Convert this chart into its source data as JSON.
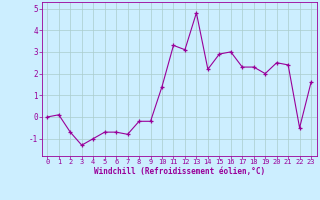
{
  "x": [
    0,
    1,
    2,
    3,
    4,
    5,
    6,
    7,
    8,
    9,
    10,
    11,
    12,
    13,
    14,
    15,
    16,
    17,
    18,
    19,
    20,
    21,
    22,
    23
  ],
  "y": [
    0.0,
    0.1,
    -0.7,
    -1.3,
    -1.0,
    -0.7,
    -0.7,
    -0.8,
    -0.2,
    -0.2,
    1.4,
    3.3,
    3.1,
    4.8,
    2.2,
    2.9,
    3.0,
    2.3,
    2.3,
    2.0,
    2.5,
    2.4,
    -0.5,
    1.6
  ],
  "line_color": "#990099",
  "marker": "+",
  "marker_color": "#990099",
  "bg_color": "#cceeff",
  "grid_color": "#aacccc",
  "xlabel": "Windchill (Refroidissement éolien,°C)",
  "xlabel_color": "#990099",
  "tick_color": "#990099",
  "ylim": [
    -1.8,
    5.3
  ],
  "xlim": [
    -0.5,
    23.5
  ],
  "yticks": [
    -1,
    0,
    1,
    2,
    3,
    4,
    5
  ],
  "xticks": [
    0,
    1,
    2,
    3,
    4,
    5,
    6,
    7,
    8,
    9,
    10,
    11,
    12,
    13,
    14,
    15,
    16,
    17,
    18,
    19,
    20,
    21,
    22,
    23
  ],
  "tick_fontsize": 5.0,
  "ytick_fontsize": 5.5,
  "xlabel_fontsize": 5.5
}
